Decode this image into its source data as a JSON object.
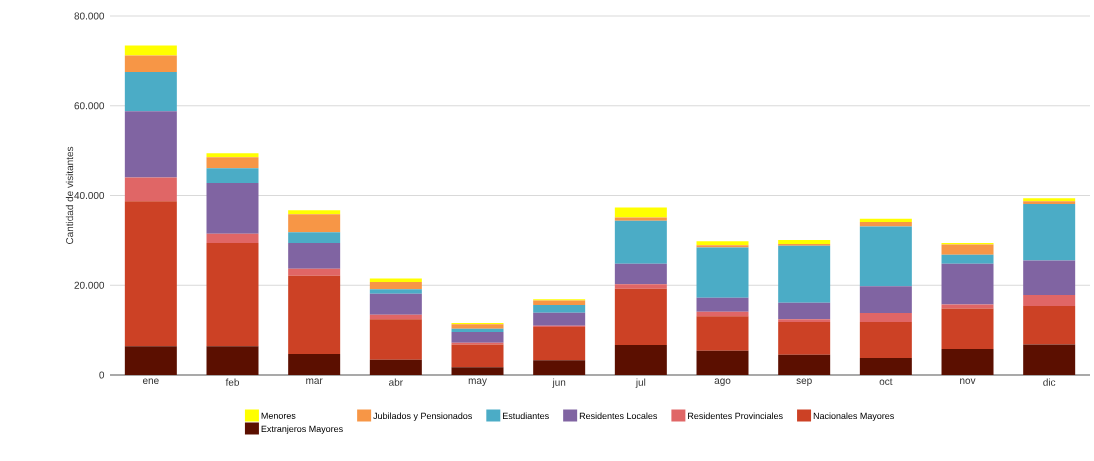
{
  "chart_data": {
    "type": "bar",
    "stacked": true,
    "ylabel": "Cantidad de visitantes",
    "categories": [
      "ene",
      "feb",
      "mar",
      "abr",
      "may",
      "jun",
      "jul",
      "ago",
      "sep",
      "oct",
      "nov",
      "dic"
    ],
    "ylim": [
      0,
      80000
    ],
    "yticks": [
      {
        "value": 0,
        "label": "0"
      },
      {
        "value": 20000,
        "label": "20.000"
      },
      {
        "value": 40000,
        "label": "40.000"
      },
      {
        "value": 60000,
        "label": "60.000"
      },
      {
        "value": 80000,
        "label": "80.000"
      }
    ],
    "grid": "y",
    "legend": "bottom",
    "series": [
      {
        "name": "Extranjeros Mayores",
        "color": "#5b0f00",
        "values": [
          6400,
          6400,
          4700,
          3400,
          1700,
          3300,
          6700,
          5400,
          4500,
          3800,
          5800,
          6800
        ]
      },
      {
        "name": "Nacionales Mayores",
        "color": "#cc4125",
        "values": [
          32300,
          23000,
          17400,
          9000,
          5100,
          7400,
          12500,
          7700,
          7300,
          8000,
          9000,
          8600
        ]
      },
      {
        "name": "Residentes Provinciales",
        "color": "#e06666",
        "values": [
          5300,
          2100,
          1600,
          1000,
          400,
          300,
          1000,
          1000,
          600,
          2000,
          900,
          2400
        ]
      },
      {
        "name": "Residentes Locales",
        "color": "#8064a2",
        "values": [
          14800,
          11300,
          5700,
          4700,
          2400,
          2900,
          4600,
          3100,
          3700,
          6000,
          9100,
          7700
        ]
      },
      {
        "name": "Estudiantes",
        "color": "#4bacc6",
        "values": [
          8700,
          3300,
          2400,
          1000,
          700,
          1700,
          9600,
          11200,
          12700,
          13300,
          2000,
          12600
        ]
      },
      {
        "name": "Jubilados y Pensionados",
        "color": "#f79646",
        "values": [
          3700,
          2400,
          4000,
          1600,
          1000,
          1000,
          700,
          500,
          400,
          1000,
          2300,
          600
        ]
      },
      {
        "name": "Menores",
        "color": "#ffff00",
        "values": [
          2200,
          900,
          900,
          800,
          300,
          300,
          2200,
          900,
          900,
          700,
          300,
          700
        ]
      }
    ]
  }
}
